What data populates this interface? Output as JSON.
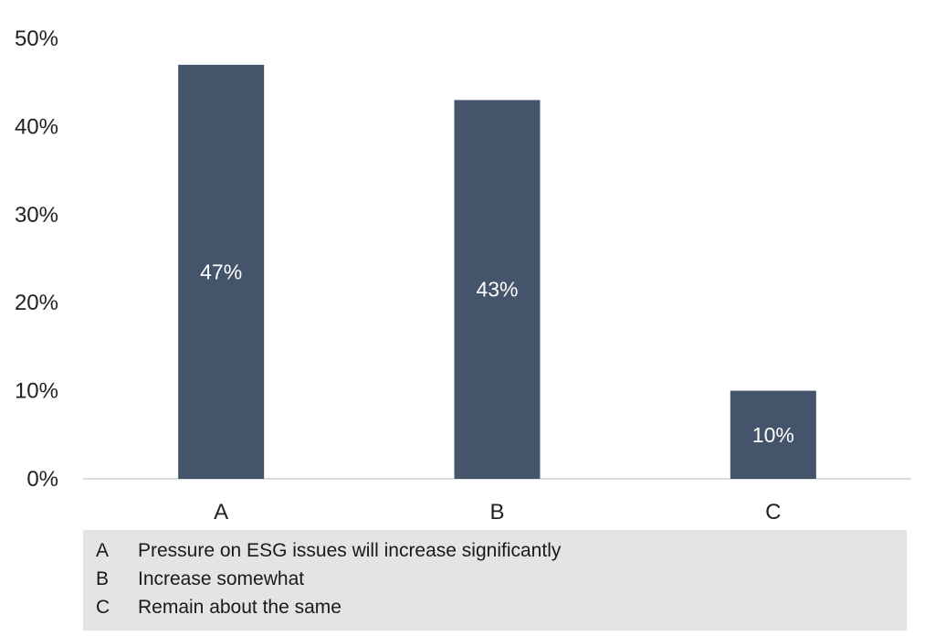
{
  "chart_data": {
    "type": "bar",
    "categories": [
      "A",
      "B",
      "C"
    ],
    "values": [
      47,
      43,
      10
    ],
    "data_labels": [
      "47%",
      "43%",
      "10%"
    ],
    "ylim": [
      0,
      50
    ],
    "yticks": [
      0,
      10,
      20,
      30,
      40,
      50
    ],
    "ytick_labels": [
      "0%",
      "10%",
      "20%",
      "30%",
      "40%",
      "50%"
    ],
    "grid": false,
    "bar_color": "#44546a",
    "legend": [
      {
        "key": "A",
        "text": "Pressure on ESG issues will increase significantly"
      },
      {
        "key": "B",
        "text": "Increase somewhat"
      },
      {
        "key": "C",
        "text": "Remain about the same"
      }
    ]
  }
}
